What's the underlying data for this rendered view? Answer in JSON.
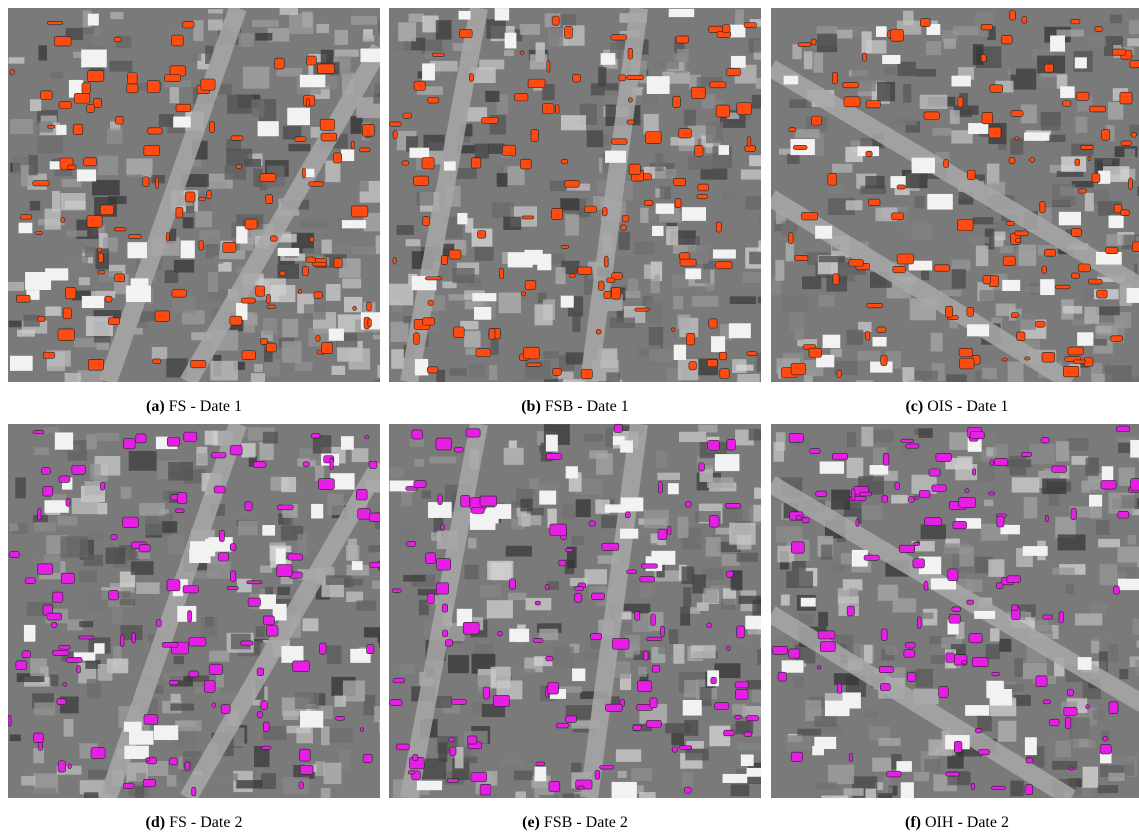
{
  "panels": [
    {
      "label": "(a)",
      "caption": "FS - Date 1"
    },
    {
      "label": "(b)",
      "caption": "FSB - Date 1"
    },
    {
      "label": "(c)",
      "caption": "OIS - Date 1"
    },
    {
      "label": "(d)",
      "caption": "FS - Date 2"
    },
    {
      "label": "(e)",
      "caption": "FSB - Date 2"
    },
    {
      "label": "(f)",
      "caption": "OIH - Date 2"
    }
  ]
}
